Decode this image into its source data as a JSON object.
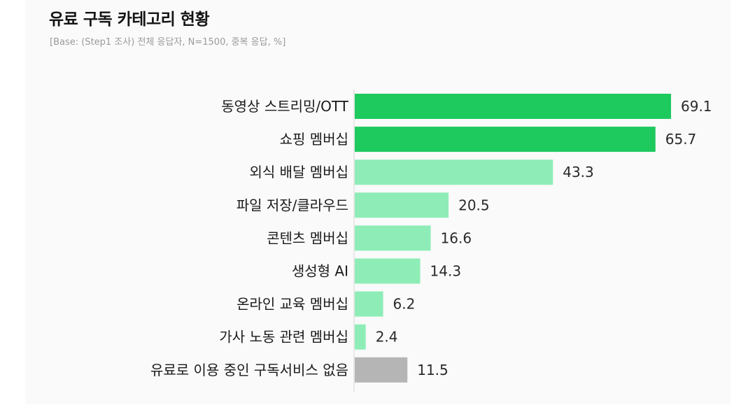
{
  "title": "유료 구독 카테고리 현황",
  "subtitle": "[Base: (Step1 조사) 전체 응답자, N=1500, 중복 응답, %]",
  "colors": {
    "highlight": "#1ec95e",
    "normal": "#8eedb7",
    "none": "#b5b5b5",
    "axis": "#d4d4d4",
    "background": "#fafafa"
  },
  "chart_data": {
    "type": "bar",
    "orientation": "horizontal",
    "title": "유료 구독 카테고리 현황",
    "subtitle": "[Base: (Step1 조사) 전체 응답자, N=1500, 중복 응답, %]",
    "categories": [
      "동영상 스트리밍/OTT",
      "쇼핑 멤버십",
      "외식 배달 멤버십",
      "파일 저장/클라우드",
      "콘텐츠 멤버십",
      "생성형 AI",
      "온라인 교육 멤버십",
      "가사 노동 관련 멤버십",
      "유료로 이용 중인 구독서비스 없음"
    ],
    "values": [
      69.1,
      65.7,
      43.3,
      20.5,
      16.6,
      14.3,
      6.2,
      2.4,
      11.5
    ],
    "value_labels": [
      "69.1",
      "65.7",
      "43.3",
      "20.5",
      "16.6",
      "14.3",
      "6.2",
      "2.4",
      "11.5"
    ],
    "bar_color_groups": [
      "highlight",
      "highlight",
      "normal",
      "normal",
      "normal",
      "normal",
      "normal",
      "normal",
      "none"
    ],
    "xlim": [
      0,
      69.1
    ],
    "grid": false,
    "legend": "none"
  }
}
